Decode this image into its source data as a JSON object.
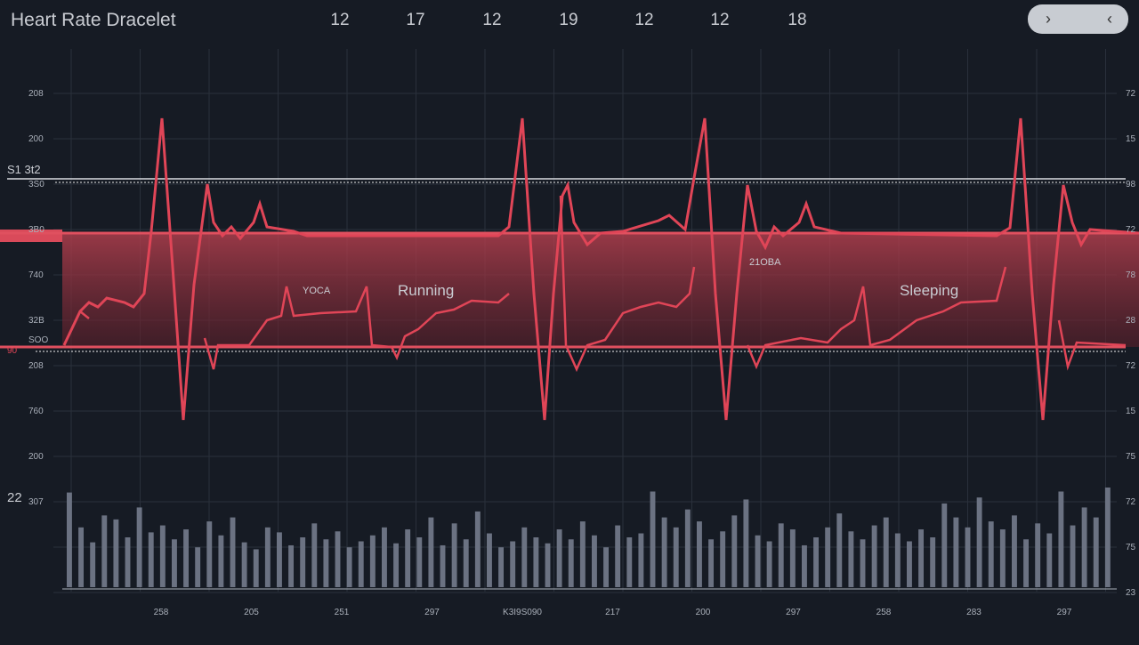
{
  "header": {
    "title": "Heart Rate Dracelet",
    "top_numbers": [
      "12",
      "17",
      "12",
      "19",
      "12",
      "12",
      "18"
    ]
  },
  "left_labels": [
    "208",
    "200",
    "3S0",
    "3B0",
    "740",
    "32B",
    "208",
    "760",
    "200",
    "307"
  ],
  "left_extra": {
    "marker": "S1 3t2",
    "low": "90",
    "mid": "SOO",
    "big": "22"
  },
  "right_labels": [
    "72",
    "15",
    "98",
    "72",
    "78",
    "28",
    "72",
    "15",
    "75",
    "72",
    "75",
    "23"
  ],
  "bottom_labels": [
    "258",
    "205",
    "251",
    "297",
    "K3I9S090",
    "217",
    "200",
    "297",
    "258",
    "283",
    "297"
  ],
  "annotations": {
    "yoga": "YOCA",
    "running": "Running",
    "mid": "21OBA",
    "sleeping": "Sleeping"
  },
  "activity_bars": [
    95,
    60,
    45,
    72,
    68,
    50,
    80,
    55,
    62,
    48,
    58,
    40,
    66,
    52,
    70,
    45,
    38,
    60,
    55,
    42,
    50,
    64,
    48,
    56,
    40,
    46,
    52,
    60,
    44,
    58,
    50,
    70,
    42,
    64,
    48,
    76,
    54,
    40,
    46,
    60,
    50,
    44,
    58,
    48,
    66,
    52,
    40,
    62,
    50,
    54,
    96,
    70,
    60,
    78,
    66,
    48,
    56,
    72,
    88,
    52,
    46,
    64,
    58,
    42,
    50,
    60,
    74,
    56,
    48,
    62,
    70,
    54,
    46,
    58,
    50,
    84,
    70,
    60,
    90,
    66,
    58,
    72,
    48,
    64,
    54,
    96,
    62,
    80,
    70,
    100
  ]
}
